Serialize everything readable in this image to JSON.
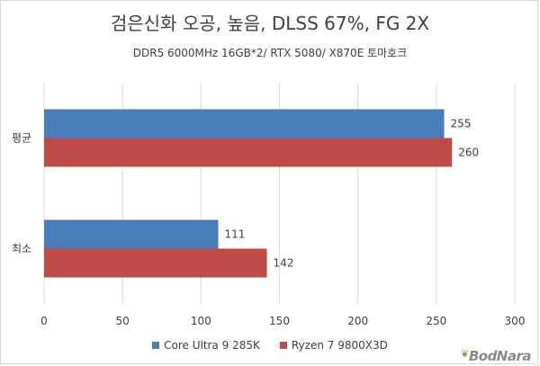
{
  "title": "검은신화 오공, 높음, DLSS 67%, FG 2X",
  "subtitle": "DDR5 6000MHz 16GB*2/ RTX 5080/ X870E 토마호크",
  "watermark": "BodNara",
  "chart_data": {
    "type": "bar",
    "orientation": "horizontal",
    "title": "검은신화 오공, 높음, DLSS 67%, FG 2X",
    "subtitle": "DDR5 6000MHz 16GB*2/ RTX 5080/ X870E 토마호크",
    "categories": [
      "평균",
      "최소"
    ],
    "series": [
      {
        "name": "Core Ultra 9 285K",
        "values": [
          255,
          111
        ],
        "color": "#4a7ebb"
      },
      {
        "name": "Ryzen 7 9800X3D",
        "values": [
          260,
          142
        ],
        "color": "#be4b48"
      }
    ],
    "xlim": [
      0,
      300
    ],
    "xticks": [
      "0",
      "50",
      "100",
      "150",
      "200",
      "250",
      "300"
    ],
    "grid": true,
    "legend": "bottom"
  }
}
